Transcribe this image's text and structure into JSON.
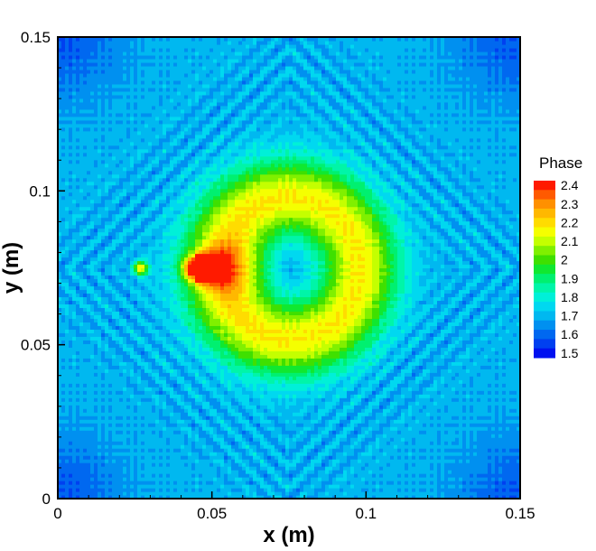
{
  "chart_data": {
    "type": "heatmap",
    "title": "",
    "xlabel": "x (m)",
    "ylabel": "y (m)",
    "xlim": [
      0,
      0.15
    ],
    "ylim": [
      0,
      0.15
    ],
    "x_ticks": [
      {
        "value": 0,
        "label": "0"
      },
      {
        "value": 0.05,
        "label": "0.05"
      },
      {
        "value": 0.1,
        "label": "0.1"
      },
      {
        "value": 0.15,
        "label": "0.15"
      }
    ],
    "y_ticks": [
      {
        "value": 0,
        "label": "0"
      },
      {
        "value": 0.05,
        "label": "0.05"
      },
      {
        "value": 0.1,
        "label": "0.1"
      },
      {
        "value": 0.15,
        "label": "0.15"
      }
    ],
    "legend": {
      "title": "Phase",
      "placement": "right",
      "levels": [
        {
          "value": 2.4,
          "label": "2.4",
          "color": "#ff1a00"
        },
        {
          "value": 2.35,
          "label": "",
          "color": "#ff5a00"
        },
        {
          "value": 2.3,
          "label": "2.3",
          "color": "#ff9000"
        },
        {
          "value": 2.25,
          "label": "",
          "color": "#ffb800"
        },
        {
          "value": 2.2,
          "label": "2.2",
          "color": "#ffdc00"
        },
        {
          "value": 2.15,
          "label": "",
          "color": "#f5ff00"
        },
        {
          "value": 2.1,
          "label": "2.1",
          "color": "#c4ff00"
        },
        {
          "value": 2.05,
          "label": "",
          "color": "#80f000"
        },
        {
          "value": 2.0,
          "label": "2",
          "color": "#3fe000"
        },
        {
          "value": 1.95,
          "label": "",
          "color": "#10e830"
        },
        {
          "value": 1.9,
          "label": "1.9",
          "color": "#00f070"
        },
        {
          "value": 1.85,
          "label": "",
          "color": "#00f5a8"
        },
        {
          "value": 1.8,
          "label": "1.8",
          "color": "#00f0d8"
        },
        {
          "value": 1.75,
          "label": "",
          "color": "#00d8f0"
        },
        {
          "value": 1.7,
          "label": "1.7",
          "color": "#00b8f0"
        },
        {
          "value": 1.65,
          "label": "",
          "color": "#0090f0"
        },
        {
          "value": 1.6,
          "label": "1.6",
          "color": "#0068f0"
        },
        {
          "value": 1.55,
          "label": "",
          "color": "#0040f0"
        },
        {
          "value": 1.5,
          "label": "1.5",
          "color": "#0010f0"
        }
      ]
    },
    "field_features": {
      "background_phase": 1.72,
      "corner_phase": 1.6,
      "ring": {
        "center_x": 0.075,
        "center_y": 0.075,
        "radius": 0.023,
        "peak_phase": 2.2
      },
      "ring_center_phase": 1.7,
      "hotspots": [
        {
          "x": 0.045,
          "y": 0.075,
          "peak_phase": 2.4
        },
        {
          "x": 0.027,
          "y": 0.075,
          "peak_phase": 2.2
        }
      ]
    }
  }
}
